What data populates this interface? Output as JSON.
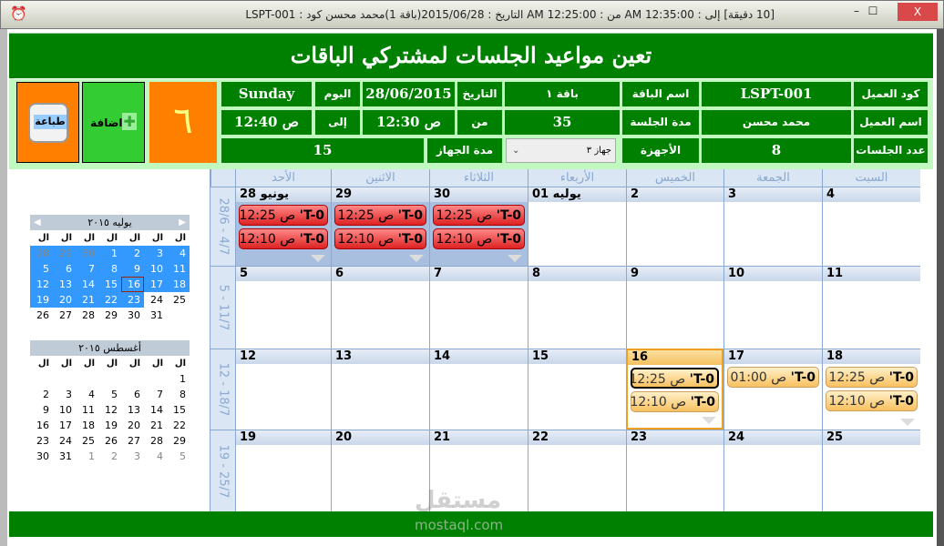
{
  "window": {
    "title": "[10 دقيقة]  إلى : 12:35:00 AM   من : 12:25:00 AM التاريخ : 2015/06/28(باقة 1)محمد محسن كود : LSPT-001",
    "minimize": "–",
    "maximize": "☐",
    "close": "X"
  },
  "header": {
    "title": "تعين مواعيد الجلسات لمشتركي الباقات"
  },
  "info": {
    "client_code_label": "كود العميل",
    "client_code": "LSPT-001",
    "package_name_label": "اسم الباقة",
    "package_name": "باقة ١",
    "date_label": "التاريخ",
    "date": "28/06/2015",
    "day_label": "اليوم",
    "day": "Sunday",
    "client_name_label": "اسم العميل",
    "client_name": "محمد محسن",
    "session_duration_label": "مدة الجلسة",
    "session_duration": "35",
    "from_label": "من",
    "from": "ص 12:30",
    "to_label": "إلى",
    "to": "ص 12:40",
    "sessions_count_label": "عدد الجلسات",
    "sessions_count": "8",
    "devices_label": "الأجهزة",
    "device_selected": "جهاز ٣",
    "device_duration_label": "مدة الجهاز",
    "device_duration": "15"
  },
  "counter": "٦",
  "buttons": {
    "add": "اضافة",
    "print": "طباعة"
  },
  "mini_cal": [
    {
      "title": "يوليه ٢٠١٥",
      "day_headers": [
        "ال",
        "ال",
        "ال",
        "ال",
        "ال",
        "ال",
        "ال"
      ],
      "days": [
        [
          "28",
          "29",
          "30",
          "1",
          "2",
          "3",
          "4"
        ],
        [
          "5",
          "6",
          "7",
          "8",
          "9",
          "10",
          "11"
        ],
        [
          "12",
          "13",
          "14",
          "15",
          "16",
          "17",
          "18"
        ],
        [
          "19",
          "20",
          "21",
          "22",
          "23",
          "24",
          "25"
        ],
        [
          "26",
          "27",
          "28",
          "29",
          "30",
          "31",
          ""
        ]
      ]
    },
    {
      "title": "أغسطس ٢٠١٥",
      "day_headers": [
        "ال",
        "ال",
        "ال",
        "ال",
        "ال",
        "ال",
        "ال"
      ],
      "days": [
        [
          "",
          "",
          "",
          "",
          "",
          "",
          "1"
        ],
        [
          "2",
          "3",
          "4",
          "5",
          "6",
          "7",
          "8"
        ],
        [
          "9",
          "10",
          "11",
          "12",
          "13",
          "14",
          "15"
        ],
        [
          "16",
          "17",
          "18",
          "19",
          "20",
          "21",
          "22"
        ],
        [
          "23",
          "24",
          "25",
          "26",
          "27",
          "28",
          "29"
        ],
        [
          "30",
          "31",
          "1",
          "2",
          "3",
          "4",
          "5"
        ]
      ]
    }
  ],
  "calendar": {
    "day_headers": [
      "الأحد",
      "الاثنين",
      "الثلاثاء",
      "الأربعاء",
      "الخميس",
      "الجمعة",
      "السبت"
    ],
    "weeks": [
      {
        "label": "28/6 - 4/7",
        "days": [
          "يونيو 28",
          "29",
          "30",
          "يوليه 01",
          "2",
          "3",
          "4"
        ]
      },
      {
        "label": "5 - 11/7",
        "days": [
          "5",
          "6",
          "7",
          "8",
          "9",
          "10",
          "11"
        ]
      },
      {
        "label": "12 - 18/7",
        "days": [
          "12",
          "13",
          "14",
          "15",
          "16",
          "17",
          "18"
        ]
      },
      {
        "label": "19 - 25/7",
        "days": [
          "19",
          "20",
          "21",
          "22",
          "23",
          "24",
          "25"
        ]
      }
    ],
    "appointments": [
      {
        "week": 0,
        "day": 0,
        "color": "red",
        "items": [
          {
            "code": "T-0'",
            "time": "ص 12:25"
          },
          {
            "code": "T-0'",
            "time": "ص 12:10"
          }
        ]
      },
      {
        "week": 0,
        "day": 1,
        "color": "red",
        "items": [
          {
            "code": "T-0'",
            "time": "ص 12:25"
          },
          {
            "code": "T-0'",
            "time": "ص 12:10"
          }
        ]
      },
      {
        "week": 0,
        "day": 2,
        "color": "red",
        "items": [
          {
            "code": "T-0'",
            "time": "ص 12:25"
          },
          {
            "code": "T-0'",
            "time": "ص 12:10"
          }
        ]
      },
      {
        "week": 2,
        "day": 4,
        "color": "orange",
        "items": [
          {
            "code": "T-0'",
            "time": "ص 12:25"
          },
          {
            "code": "T-0'",
            "time": "ص 12:10"
          }
        ]
      },
      {
        "week": 2,
        "day": 5,
        "color": "orange",
        "items": [
          {
            "code": "T-0'",
            "time": "ص 01:00"
          }
        ]
      },
      {
        "week": 2,
        "day": 6,
        "color": "orange",
        "items": [
          {
            "code": "T-0'",
            "time": "ص 12:25"
          },
          {
            "code": "T-0'",
            "time": "ص 12:10"
          }
        ]
      }
    ]
  },
  "watermark": {
    "arabic": "مستقل",
    "latin": "mostaql.com"
  }
}
